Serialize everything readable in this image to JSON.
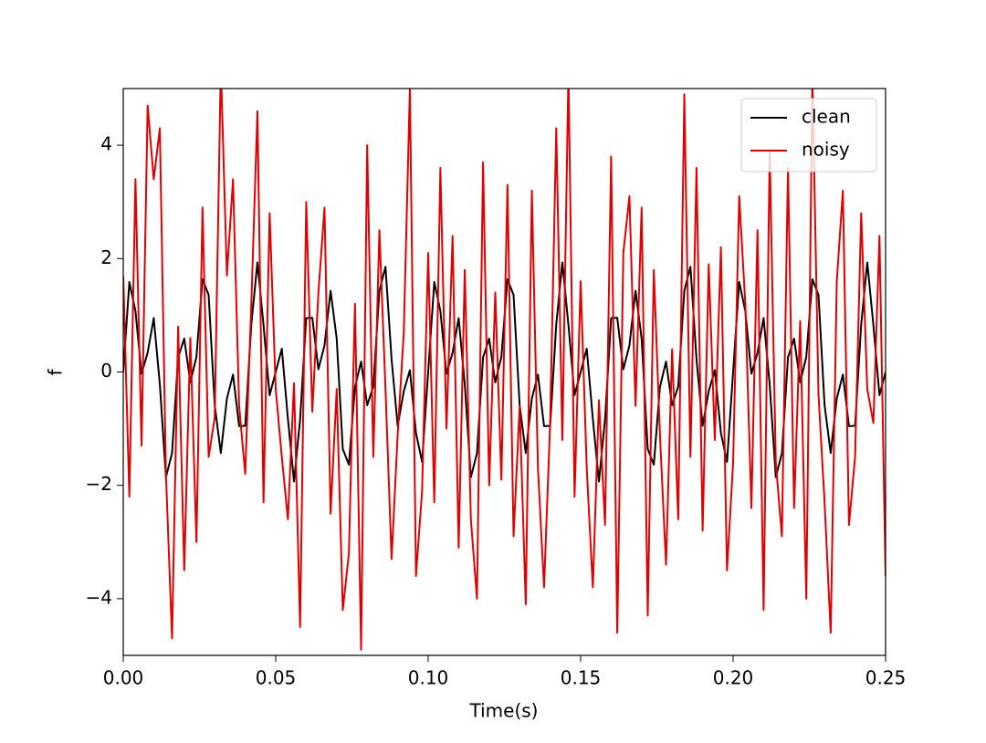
{
  "chart_data": {
    "type": "line",
    "xlabel": "Time(s)",
    "ylabel": "f",
    "xlim": [
      0,
      0.25
    ],
    "ylim": [
      -5,
      5
    ],
    "xticks": [
      {
        "value": 0,
        "label": "0.00"
      },
      {
        "value": 0.05,
        "label": "0.05"
      },
      {
        "value": 0.1,
        "label": "0.10"
      },
      {
        "value": 0.15,
        "label": "0.15"
      },
      {
        "value": 0.2,
        "label": "0.20"
      },
      {
        "value": 0.25,
        "label": "0.25"
      }
    ],
    "yticks": [
      {
        "value": -4,
        "label": "−4"
      },
      {
        "value": -2,
        "label": "−2"
      },
      0,
      2,
      4
    ],
    "legend": "upper right",
    "x": [
      0,
      0.002,
      0.004,
      0.006,
      0.008,
      0.01,
      0.012,
      0.014,
      0.016,
      0.018,
      0.02,
      0.022,
      0.024,
      0.026,
      0.028,
      0.03,
      0.032,
      0.034,
      0.036,
      0.038,
      0.04,
      0.042,
      0.044,
      0.046,
      0.048,
      0.05,
      0.052,
      0.054,
      0.056,
      0.058,
      0.06,
      0.062,
      0.064,
      0.066,
      0.068,
      0.07,
      0.072,
      0.074,
      0.076,
      0.078,
      0.08,
      0.082,
      0.084,
      0.086,
      0.088,
      0.09,
      0.092,
      0.094,
      0.096,
      0.098,
      0.1,
      0.102,
      0.104,
      0.106,
      0.108,
      0.11,
      0.112,
      0.114,
      0.116,
      0.118,
      0.12,
      0.122,
      0.124,
      0.126,
      0.128,
      0.13,
      0.132,
      0.134,
      0.136,
      0.138,
      0.14,
      0.142,
      0.144,
      0.146,
      0.148,
      0.15,
      0.152,
      0.154,
      0.156,
      0.158,
      0.16,
      0.162,
      0.164,
      0.166,
      0.168,
      0.17,
      0.172,
      0.174,
      0.176,
      0.178,
      0.18,
      0.182,
      0.184,
      0.186,
      0.188,
      0.19,
      0.192,
      0.194,
      0.196,
      0.198,
      0.2,
      0.202,
      0.204,
      0.206,
      0.208,
      0.21,
      0.212,
      0.214,
      0.216,
      0.218,
      0.22,
      0.222,
      0.224,
      0.226,
      0.228,
      0.23,
      0.232,
      0.234,
      0.236,
      0.238,
      0.24,
      0.242,
      0.244,
      0.246,
      0.248,
      0.25
    ],
    "series": [
      {
        "name": "clean",
        "color": "#000000",
        "values": [
          0,
          1.586,
          1.076,
          -0.031,
          0.339,
          0.951,
          -0.22,
          -1.856,
          -1.433,
          0.256,
          0.588,
          -0.183,
          0.266,
          1.636,
          1.359,
          -0.588,
          -1.432,
          -0.469,
          -0.046,
          -0.956,
          -0.951,
          0.837,
          1.933,
          0.826,
          -0.41,
          0,
          0.41,
          -0.826,
          -1.933,
          -0.837,
          0.951,
          0.956,
          0.046,
          0.469,
          1.432,
          0.588,
          -1.359,
          -1.636,
          -0.266,
          0.183,
          -0.588,
          -0.256,
          1.433,
          1.856,
          0.22,
          -0.951,
          -0.339,
          0.031,
          -1.076,
          -1.586,
          0,
          1.586,
          1.076,
          -0.031,
          0.339,
          0.951,
          -0.22,
          -1.856,
          -1.433,
          0.256,
          0.588,
          -0.183,
          0.266,
          1.636,
          1.359,
          -0.588,
          -1.432,
          -0.469,
          -0.046,
          -0.956,
          -0.951,
          0.837,
          1.933,
          0.826,
          -0.41,
          0,
          0.41,
          -0.826,
          -1.933,
          -0.837,
          0.951,
          0.956,
          0.046,
          0.469,
          1.432,
          0.588,
          -1.359,
          -1.636,
          -0.266,
          0.183,
          -0.588,
          -0.256,
          1.433,
          1.856,
          0.22,
          -0.951,
          -0.339,
          0.031,
          -1.076,
          -1.586,
          0,
          1.586,
          1.076,
          -0.031,
          0.339,
          0.951,
          -0.22,
          -1.856,
          -1.433,
          0.256,
          0.588,
          -0.183,
          0.266,
          1.636,
          1.359,
          -0.588,
          -1.432,
          -0.469,
          -0.046,
          -0.956,
          -0.951,
          0.837,
          1.933,
          0.826,
          -0.41,
          0
        ]
      },
      {
        "name": "noisy",
        "color": "#e00000",
        "values": [
          1.7,
          -2.2,
          3.4,
          -1.3,
          4.7,
          3.4,
          4.3,
          -1.8,
          -4.7,
          0.8,
          -3.5,
          0.6,
          -3.0,
          2.9,
          -1.5,
          -0.8,
          5.4,
          1.7,
          3.4,
          -0.6,
          -1.8,
          1.2,
          4.6,
          -2.3,
          2.8,
          -0.3,
          -1.5,
          -2.6,
          -0.2,
          -4.5,
          3.0,
          -0.7,
          1.4,
          2.9,
          -2.5,
          -0.3,
          -4.2,
          -3.2,
          1.2,
          -4.9,
          4.0,
          -1.5,
          2.5,
          -0.3,
          -3.3,
          -1.1,
          0.7,
          5.0,
          -3.6,
          -2.1,
          2.1,
          -2.3,
          3.6,
          -1.0,
          2.4,
          -3.1,
          1.8,
          -2.6,
          -4.0,
          3.7,
          -2.0,
          1.4,
          -1.9,
          3.3,
          -2.9,
          -0.6,
          -4.1,
          3.2,
          -1.7,
          -3.8,
          -0.9,
          4.3,
          -1.2,
          5.3,
          -2.2,
          1.6,
          -1.7,
          -3.8,
          -0.5,
          -2.7,
          3.8,
          -4.6,
          2.1,
          3.1,
          -0.6,
          2.9,
          -4.3,
          1.8,
          -1.1,
          -3.4,
          0.4,
          -2.6,
          4.9,
          -1.5,
          3.6,
          -2.8,
          1.9,
          -1.2,
          2.2,
          -3.5,
          -1.6,
          3.1,
          1.2,
          -2.4,
          2.5,
          -4.2,
          3.9,
          -1.6,
          -2.9,
          3.6,
          -2.4,
          0.9,
          -4.0,
          5.2,
          -0.4,
          -2.3,
          -4.6,
          1.6,
          3.2,
          -2.7,
          -1.5,
          2.8,
          -0.3,
          -0.9,
          2.4,
          -3.6
        ]
      }
    ]
  }
}
